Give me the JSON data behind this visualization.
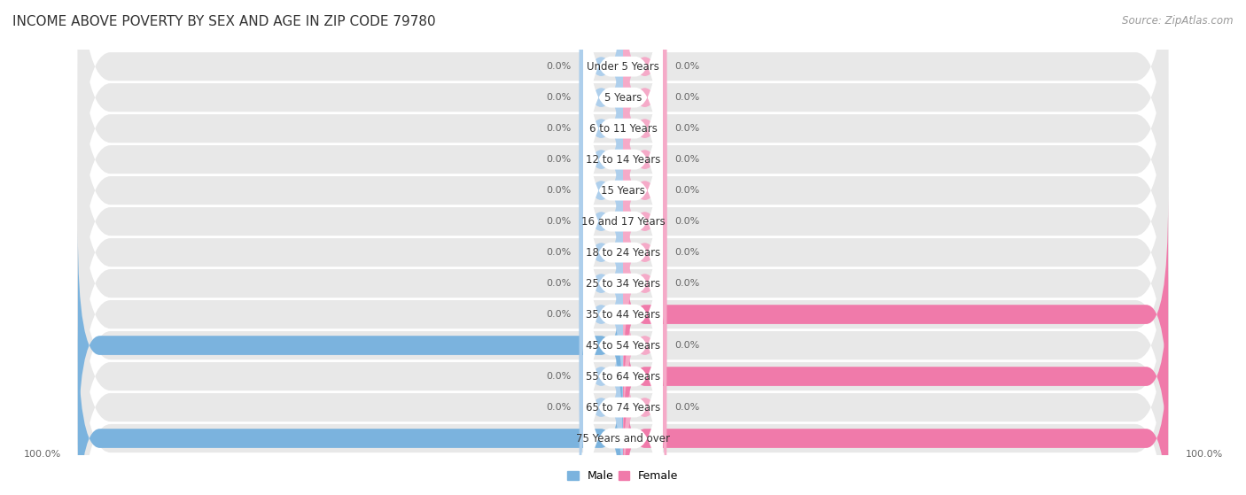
{
  "title": "INCOME ABOVE POVERTY BY SEX AND AGE IN ZIP CODE 79780",
  "source": "Source: ZipAtlas.com",
  "categories": [
    "Under 5 Years",
    "5 Years",
    "6 to 11 Years",
    "12 to 14 Years",
    "15 Years",
    "16 and 17 Years",
    "18 to 24 Years",
    "25 to 34 Years",
    "35 to 44 Years",
    "45 to 54 Years",
    "55 to 64 Years",
    "65 to 74 Years",
    "75 Years and over"
  ],
  "male_values": [
    0.0,
    0.0,
    0.0,
    0.0,
    0.0,
    0.0,
    0.0,
    0.0,
    0.0,
    100.0,
    0.0,
    0.0,
    100.0
  ],
  "female_values": [
    0.0,
    0.0,
    0.0,
    0.0,
    0.0,
    0.0,
    0.0,
    0.0,
    100.0,
    0.0,
    100.0,
    0.0,
    100.0
  ],
  "male_color": "#7bb3de",
  "male_color_light": "#aecfec",
  "female_color": "#f07aaa",
  "female_color_light": "#f5aac8",
  "male_label": "Male",
  "female_label": "Female",
  "row_bg_color": "#e8e8e8",
  "title_fontsize": 11,
  "label_fontsize": 8.5,
  "source_fontsize": 8.5,
  "legend_fontsize": 9,
  "value_fontsize": 8.0,
  "axis_limit": 100,
  "stub_size": 8.0
}
